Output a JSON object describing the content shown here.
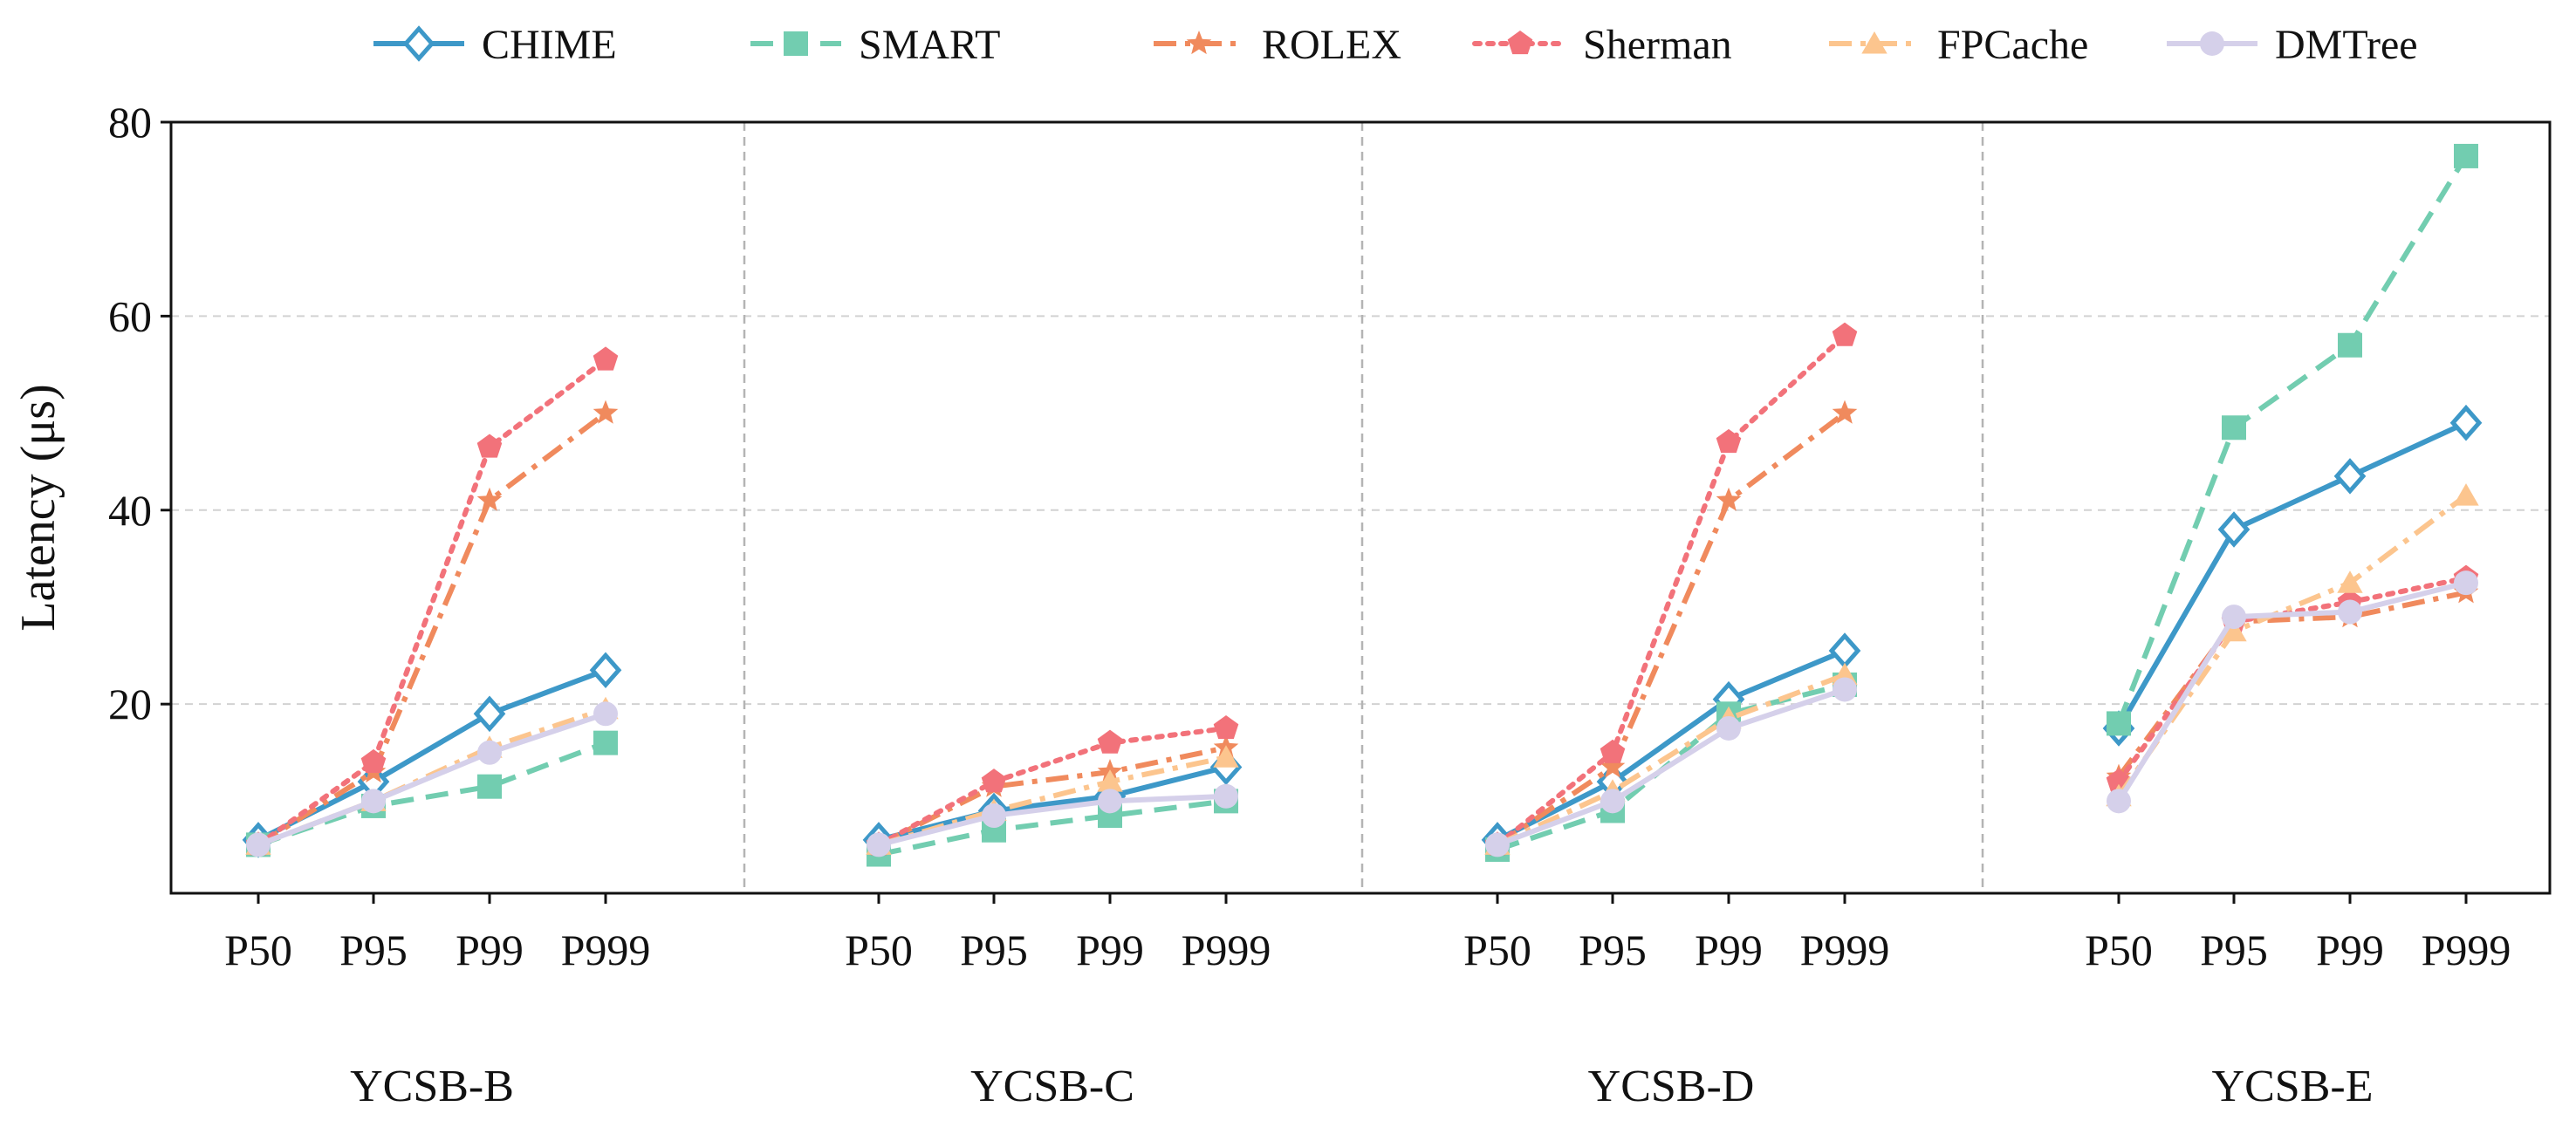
{
  "chart_data": {
    "type": "line",
    "ylabel": "Latency (μs)",
    "ylim": [
      0.5,
      80
    ],
    "yticks": [
      20,
      40,
      60,
      80
    ],
    "grid": "horizontal dashed",
    "legend_position": "top",
    "categories": [
      "P50",
      "P95",
      "P99",
      "P999"
    ],
    "groups": [
      "YCSB-B",
      "YCSB-C",
      "YCSB-D",
      "YCSB-E"
    ],
    "series": [
      {
        "name": "CHIME",
        "color": "#3d98c8",
        "marker": "diamond-open",
        "dash": "solid",
        "values": [
          [
            6.0,
            12.0,
            19.0,
            23.5
          ],
          [
            6.0,
            9.0,
            10.5,
            13.5
          ],
          [
            6.0,
            12.0,
            20.5,
            25.5
          ],
          [
            17.5,
            38.0,
            43.5,
            49.0
          ]
        ]
      },
      {
        "name": "SMART",
        "color": "#72cdb0",
        "marker": "square",
        "dash": "dashed",
        "values": [
          [
            5.5,
            9.5,
            11.5,
            16.0
          ],
          [
            4.5,
            7.0,
            8.5,
            10.0
          ],
          [
            5.0,
            9.0,
            19.0,
            22.0
          ],
          [
            18.0,
            48.5,
            57.0,
            76.5
          ]
        ]
      },
      {
        "name": "ROLEX",
        "color": "#f08a5d",
        "marker": "star",
        "dash": "dashdot",
        "values": [
          [
            5.5,
            13.0,
            41.0,
            50.0
          ],
          [
            5.5,
            11.5,
            13.0,
            15.5
          ],
          [
            5.5,
            13.5,
            41.0,
            50.0
          ],
          [
            12.5,
            28.5,
            29.0,
            31.5
          ]
        ]
      },
      {
        "name": "Sherman",
        "color": "#f2727a",
        "marker": "pentagon",
        "dash": "dotted",
        "values": [
          [
            5.5,
            14.0,
            46.5,
            55.5
          ],
          [
            5.5,
            12.0,
            16.0,
            17.5
          ],
          [
            5.5,
            15.0,
            47.0,
            58.0
          ],
          [
            12.0,
            28.5,
            30.5,
            33.0
          ]
        ]
      },
      {
        "name": "FPCache",
        "color": "#fcc58e",
        "marker": "triangle",
        "dash": "dashdot",
        "values": [
          [
            5.5,
            10.0,
            15.5,
            19.5
          ],
          [
            5.5,
            9.0,
            12.0,
            14.5
          ],
          [
            5.5,
            11.0,
            18.5,
            23.0
          ],
          [
            10.5,
            27.5,
            32.5,
            41.5
          ]
        ]
      },
      {
        "name": "DMTree",
        "color": "#d5d0ea",
        "marker": "circle",
        "dash": "solid",
        "values": [
          [
            5.5,
            10.0,
            15.0,
            19.0
          ],
          [
            5.5,
            8.5,
            10.0,
            10.5
          ],
          [
            5.5,
            10.0,
            17.5,
            21.5
          ],
          [
            10.0,
            29.0,
            29.5,
            32.5
          ]
        ]
      }
    ]
  }
}
